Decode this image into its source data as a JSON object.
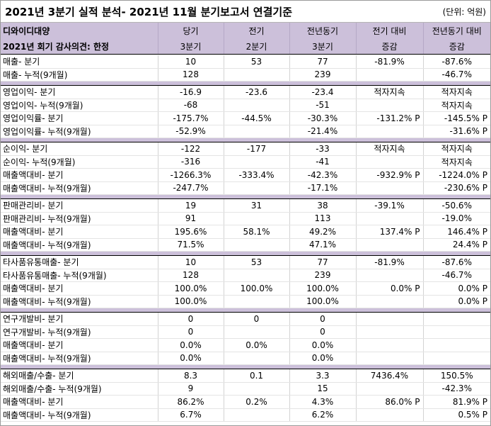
{
  "title": "2021년 3분기 실적 분석- 2021년 11월 분기보고서 연결기준",
  "unit": "(단위: 억원)",
  "header": {
    "company": "디와이디대양",
    "audit": "2021년 회기 감사의견: 한정",
    "columns": [
      {
        "line1": "당기",
        "line2": "3분기"
      },
      {
        "line1": "전기",
        "line2": "2분기"
      },
      {
        "line1": "전년동기",
        "line2": "3분기"
      },
      {
        "line1": "전기 대비",
        "line2": "증감"
      },
      {
        "line1": "전년동기 대비",
        "line2": "증감"
      }
    ]
  },
  "sections": [
    {
      "rows": [
        {
          "label": "매출- 분기",
          "cur": "10",
          "prev": "53",
          "yoy": "77",
          "qoq_chg": "-81.9%",
          "yoy_chg": "-87.6%"
        },
        {
          "label": "매출- 누적(9개월)",
          "cur": "128",
          "prev": "",
          "yoy": "239",
          "qoq_chg": "",
          "yoy_chg": "-46.7%"
        }
      ]
    },
    {
      "rows": [
        {
          "label": "영업이익- 분기",
          "cur": "-16.9",
          "prev": "-23.6",
          "yoy": "-23.4",
          "qoq_chg": "적자지속",
          "yoy_chg": "적자지속"
        },
        {
          "label": "영업이익- 누적(9개월)",
          "cur": "-68",
          "prev": "",
          "yoy": "-51",
          "qoq_chg": "",
          "yoy_chg": "적자지속"
        },
        {
          "label": "영업이익률- 분기",
          "cur": "-175.7%",
          "prev": "-44.5%",
          "yoy": "-30.3%",
          "qoq_chg": "-131.2% P",
          "yoy_chg": "-145.5% P"
        },
        {
          "label": "영업이익률- 누적(9개월)",
          "cur": "-52.9%",
          "prev": "",
          "yoy": "-21.4%",
          "qoq_chg": "",
          "yoy_chg": "-31.6% P"
        }
      ]
    },
    {
      "rows": [
        {
          "label": "순이익- 분기",
          "cur": "-122",
          "prev": "-177",
          "yoy": "-33",
          "qoq_chg": "적자지속",
          "yoy_chg": "적자지속"
        },
        {
          "label": "순이익- 누적(9개월)",
          "cur": "-316",
          "prev": "",
          "yoy": "-41",
          "qoq_chg": "",
          "yoy_chg": "적자지속"
        },
        {
          "label": "매출액대비- 분기",
          "cur": "-1266.3%",
          "prev": "-333.4%",
          "yoy": "-42.3%",
          "qoq_chg": "-932.9% P",
          "yoy_chg": "-1224.0% P"
        },
        {
          "label": "매출액대비- 누적(9개월)",
          "cur": "-247.7%",
          "prev": "",
          "yoy": "-17.1%",
          "qoq_chg": "",
          "yoy_chg": "-230.6% P"
        }
      ]
    },
    {
      "rows": [
        {
          "label": "판매관리비- 분기",
          "cur": "19",
          "prev": "31",
          "yoy": "38",
          "qoq_chg": "-39.1%",
          "yoy_chg": "-50.6%"
        },
        {
          "label": "판매관리비- 누적(9개월)",
          "cur": "91",
          "prev": "",
          "yoy": "113",
          "qoq_chg": "",
          "yoy_chg": "-19.0%"
        },
        {
          "label": "매출액대비- 분기",
          "cur": "195.6%",
          "prev": "58.1%",
          "yoy": "49.2%",
          "qoq_chg": "137.4% P",
          "yoy_chg": "146.4% P"
        },
        {
          "label": "매출액대비- 누적(9개월)",
          "cur": "71.5%",
          "prev": "",
          "yoy": "47.1%",
          "qoq_chg": "",
          "yoy_chg": "24.4% P"
        }
      ]
    },
    {
      "rows": [
        {
          "label": "타사품유통매출- 분기",
          "cur": "10",
          "prev": "53",
          "yoy": "77",
          "qoq_chg": "-81.9%",
          "yoy_chg": "-87.6%"
        },
        {
          "label": "타사품유통매출- 누적(9개월)",
          "cur": "128",
          "prev": "",
          "yoy": "239",
          "qoq_chg": "",
          "yoy_chg": "-46.7%"
        },
        {
          "label": "매출액대비- 분기",
          "cur": "100.0%",
          "prev": "100.0%",
          "yoy": "100.0%",
          "qoq_chg": "0.0% P",
          "yoy_chg": "0.0% P"
        },
        {
          "label": "매출액대비- 누적(9개월)",
          "cur": "100.0%",
          "prev": "",
          "yoy": "100.0%",
          "qoq_chg": "",
          "yoy_chg": "0.0% P"
        }
      ]
    },
    {
      "rows": [
        {
          "label": "연구개발비- 분기",
          "cur": "0",
          "prev": "0",
          "yoy": "0",
          "qoq_chg": "",
          "yoy_chg": ""
        },
        {
          "label": "연구개발비- 누적(9개월)",
          "cur": "0",
          "prev": "",
          "yoy": "0",
          "qoq_chg": "",
          "yoy_chg": ""
        },
        {
          "label": "매출액대비- 분기",
          "cur": "0.0%",
          "prev": "0.0%",
          "yoy": "0.0%",
          "qoq_chg": "",
          "yoy_chg": ""
        },
        {
          "label": "매출액대비- 누적(9개월)",
          "cur": "0.0%",
          "prev": "",
          "yoy": "0.0%",
          "qoq_chg": "",
          "yoy_chg": ""
        }
      ]
    },
    {
      "rows": [
        {
          "label": "해외매출/수출- 분기",
          "cur": "8.3",
          "prev": "0.1",
          "yoy": "3.3",
          "qoq_chg": "7436.4%",
          "yoy_chg": "150.5%"
        },
        {
          "label": "해외매출/수출- 누적(9개월)",
          "cur": "9",
          "prev": "",
          "yoy": "15",
          "qoq_chg": "",
          "yoy_chg": "-42.3%"
        },
        {
          "label": "매출액대비- 분기",
          "cur": "86.2%",
          "prev": "0.2%",
          "yoy": "4.3%",
          "qoq_chg": "86.0% P",
          "yoy_chg": "81.9% P"
        },
        {
          "label": "매출액대비- 누적(9개월)",
          "cur": "6.7%",
          "prev": "",
          "yoy": "6.2%",
          "qoq_chg": "",
          "yoy_chg": "0.5% P"
        }
      ]
    }
  ]
}
